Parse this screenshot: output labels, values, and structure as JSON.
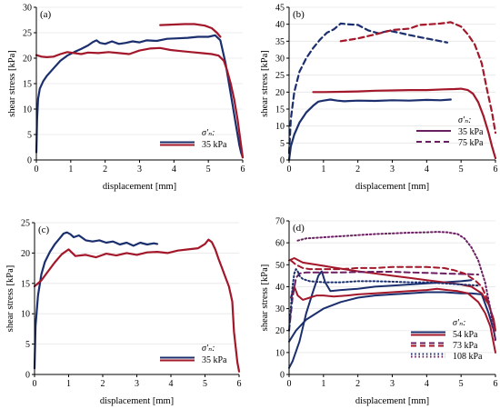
{
  "colors": {
    "blue": "#1b2f6e",
    "red": "#a3172a",
    "purple": "#6a2060",
    "axis": "#000000",
    "grid": "#e6e6e6"
  },
  "chart_data": [
    {
      "type": "line",
      "panel_label": "(a)",
      "xlabel": "displacement [mm]",
      "ylabel": "shear stress [kPa]",
      "xlim": [
        0,
        6
      ],
      "ylim": [
        0,
        30
      ],
      "xticks": [
        0,
        1,
        2,
        3,
        4,
        5,
        6
      ],
      "yticks": [
        0,
        5,
        10,
        15,
        20,
        25,
        30
      ],
      "legend_title": "σ'ₙ:",
      "legend_position": "bottom-right",
      "legend": [
        {
          "label": "35 kPa",
          "colors": [
            "blue",
            "red"
          ],
          "dash": "solid"
        }
      ],
      "series": [
        {
          "color": "blue",
          "dash": "solid",
          "width": 2.2,
          "x": [
            0,
            0.02,
            0.05,
            0.1,
            0.2,
            0.3,
            0.5,
            0.7,
            0.9,
            1.1,
            1.3,
            1.5,
            1.65,
            1.75,
            1.85,
            2.0,
            2.2,
            2.4,
            2.6,
            2.8,
            3.0,
            3.2,
            3.5,
            3.8,
            4.1,
            4.4,
            4.7,
            5.0,
            5.2,
            5.35,
            5.5,
            5.6,
            5.7,
            5.8,
            5.9,
            5.95,
            6.0
          ],
          "y": [
            1.5,
            8,
            12,
            14,
            15.5,
            16.5,
            18,
            19.5,
            20.5,
            21.2,
            21.8,
            22.5,
            23.2,
            23.5,
            23,
            22.8,
            23.3,
            22.8,
            23,
            23.3,
            23.1,
            23.5,
            23.4,
            23.8,
            23.9,
            24,
            24.2,
            24.2,
            24.5,
            23.5,
            19,
            15,
            11,
            7,
            3,
            1.5,
            0.5
          ]
        },
        {
          "color": "red",
          "dash": "solid",
          "width": 2.2,
          "x": [
            0,
            0.05,
            0.15,
            0.3,
            0.5,
            0.7,
            0.9,
            1.1,
            1.3,
            1.5,
            1.8,
            2.1,
            2.4,
            2.7,
            3.0,
            3.3,
            3.6,
            3.9,
            4.2,
            4.5,
            4.8,
            5.1,
            5.3,
            5.45,
            5.55,
            5.65,
            5.75,
            5.85,
            5.95,
            6.0
          ],
          "y": [
            20.6,
            20.5,
            20.3,
            20.2,
            20.3,
            20.8,
            21.2,
            21.0,
            20.8,
            21.1,
            21.0,
            21.2,
            21.0,
            20.8,
            21.5,
            21.9,
            22.0,
            21.6,
            21.4,
            21.2,
            21.0,
            20.8,
            20.5,
            19.5,
            17.5,
            15,
            12,
            8,
            3,
            0.5
          ]
        },
        {
          "color": "red",
          "dash": "solid",
          "width": 2.2,
          "x": [
            3.6,
            4.0,
            4.3,
            4.6,
            4.9,
            5.1,
            5.25,
            5.35
          ],
          "y": [
            26.5,
            26.6,
            26.7,
            26.7,
            26.4,
            25.9,
            25.0,
            24.2
          ]
        }
      ]
    },
    {
      "type": "line",
      "panel_label": "(b)",
      "xlabel": "displacement [mm]",
      "ylabel": "shear stress [kPa]",
      "xlim": [
        0,
        6
      ],
      "ylim": [
        0,
        45
      ],
      "xticks": [
        0,
        1,
        2,
        3,
        4,
        5,
        6
      ],
      "yticks": [
        0,
        5,
        10,
        15,
        20,
        25,
        30,
        35,
        40,
        45
      ],
      "legend_title": "σ'ₙ:",
      "legend_position": "bottom-right",
      "legend": [
        {
          "label": "35 kPa",
          "colors": [
            "purple"
          ],
          "dash": "solid"
        },
        {
          "label": "75 kPa",
          "colors": [
            "purple"
          ],
          "dash": "dashed"
        }
      ],
      "series": [
        {
          "color": "blue",
          "dash": "solid",
          "width": 2.2,
          "x": [
            0,
            0.05,
            0.15,
            0.3,
            0.5,
            0.7,
            0.85,
            1.0,
            1.2,
            1.4,
            1.6,
            2.0,
            2.5,
            3.0,
            3.5,
            4.0,
            4.4,
            4.7
          ],
          "y": [
            0,
            4,
            7.5,
            11,
            14,
            16,
            17.2,
            17.5,
            17.8,
            17.5,
            17.3,
            17.5,
            17.4,
            17.6,
            17.5,
            17.7,
            17.6,
            17.8
          ]
        },
        {
          "color": "red",
          "dash": "solid",
          "width": 2.2,
          "x": [
            0.7,
            1.0,
            1.5,
            2.0,
            2.5,
            3.0,
            3.5,
            4.0,
            4.5,
            4.8,
            5.0,
            5.2,
            5.35,
            5.5,
            5.65,
            5.8,
            5.9,
            6.0
          ],
          "y": [
            20.0,
            20.0,
            20.1,
            20.2,
            20.4,
            20.5,
            20.6,
            20.6,
            20.8,
            20.9,
            21.0,
            20.6,
            19.5,
            17.0,
            13.0,
            8.0,
            4.0,
            0.5
          ]
        },
        {
          "color": "blue",
          "dash": "dashed",
          "width": 2.2,
          "x": [
            0,
            0.05,
            0.15,
            0.3,
            0.5,
            0.7,
            0.9,
            1.1,
            1.3,
            1.5,
            1.7,
            2.0,
            2.3,
            2.6,
            2.9,
            3.2,
            3.5,
            3.8,
            4.1,
            4.4,
            4.6
          ],
          "y": [
            2,
            12,
            20,
            26,
            30,
            33,
            35.5,
            37.5,
            38.5,
            40.2,
            40.0,
            39.8,
            38.2,
            37.3,
            38.1,
            37.5,
            36.8,
            36.2,
            35.6,
            35.0,
            34.6
          ]
        },
        {
          "color": "red",
          "dash": "dashed",
          "width": 2.2,
          "x": [
            1.5,
            2.0,
            2.5,
            3.0,
            3.5,
            3.8,
            4.1,
            4.4,
            4.7,
            5.0,
            5.2,
            5.4,
            5.6,
            5.75,
            5.9,
            6.0
          ],
          "y": [
            35.0,
            35.8,
            37.0,
            38.3,
            38.7,
            39.8,
            40.0,
            40.2,
            40.6,
            39.3,
            37.0,
            34.0,
            28.5,
            21.0,
            14.0,
            8.0
          ]
        }
      ]
    },
    {
      "type": "line",
      "panel_label": "(c)",
      "xlabel": "displacement [mm]",
      "ylabel": "shear stress [kPa]",
      "xlim": [
        0,
        6
      ],
      "ylim": [
        0,
        25
      ],
      "xticks": [
        0,
        1,
        2,
        3,
        4,
        5,
        6
      ],
      "yticks": [
        0,
        5,
        10,
        15,
        20,
        25
      ],
      "legend_title": "σ'ₙ:",
      "legend_position": "bottom-right",
      "legend": [
        {
          "label": "35 kPa",
          "colors": [
            "blue",
            "red"
          ],
          "dash": "solid"
        }
      ],
      "series": [
        {
          "color": "blue",
          "dash": "solid",
          "width": 2.2,
          "x": [
            0,
            0.03,
            0.1,
            0.2,
            0.3,
            0.45,
            0.6,
            0.75,
            0.85,
            0.95,
            1.05,
            1.15,
            1.3,
            1.5,
            1.7,
            1.9,
            2.1,
            2.3,
            2.5,
            2.7,
            2.9,
            3.1,
            3.3,
            3.5,
            3.6
          ],
          "y": [
            1,
            8,
            13,
            16.5,
            18.5,
            20.2,
            21.5,
            22.5,
            23.2,
            23.4,
            23.1,
            22.6,
            22.9,
            22.1,
            21.9,
            22.1,
            21.7,
            21.9,
            21.4,
            21.7,
            21.2,
            21.7,
            21.4,
            21.6,
            21.5
          ]
        },
        {
          "color": "red",
          "dash": "solid",
          "width": 2.2,
          "x": [
            0,
            0.2,
            0.4,
            0.6,
            0.8,
            1.0,
            1.2,
            1.5,
            1.8,
            2.1,
            2.4,
            2.7,
            3.0,
            3.3,
            3.6,
            3.9,
            4.2,
            4.5,
            4.8,
            5.0,
            5.1,
            5.2,
            5.3,
            5.4,
            5.5,
            5.6,
            5.7,
            5.8,
            5.85,
            5.95,
            6.0
          ],
          "y": [
            14.5,
            15.5,
            17.0,
            18.5,
            19.8,
            20.6,
            19.5,
            19.7,
            19.3,
            19.9,
            19.6,
            20.0,
            19.7,
            20.1,
            20.2,
            20.0,
            20.4,
            20.6,
            20.8,
            21.5,
            22.2,
            21.8,
            20.6,
            19.0,
            17.5,
            16.0,
            14.5,
            12.0,
            7.0,
            2.0,
            0.5
          ]
        }
      ]
    },
    {
      "type": "line",
      "panel_label": "(d)",
      "xlabel": "displacement [mm]",
      "ylabel": "shear stress [kPa]",
      "xlim": [
        0,
        6
      ],
      "ylim": [
        0,
        70
      ],
      "xticks": [
        0,
        1,
        2,
        3,
        4,
        5,
        6
      ],
      "yticks": [
        0,
        10,
        20,
        30,
        40,
        50,
        60,
        70
      ],
      "legend_title": "σ'ₙ:",
      "legend_position": "bottom-right",
      "legend": [
        {
          "label": "54 kPa",
          "colors": [
            "blue",
            "red"
          ],
          "dash": "solid"
        },
        {
          "label": "73 kPa",
          "colors": [
            "purple",
            "red"
          ],
          "dash": "dashed"
        },
        {
          "label": "108 kPa",
          "colors": [
            "blue",
            "purple"
          ],
          "dash": "dotted"
        }
      ],
      "series": [
        {
          "color": "blue",
          "dash": "solid",
          "width": 2.0,
          "x": [
            0,
            0.2,
            0.5,
            1.0,
            1.5,
            2.0,
            2.5,
            3.0,
            3.5,
            4.0,
            4.5,
            5.0,
            5.3,
            5.6,
            5.8,
            5.95,
            6.0
          ],
          "y": [
            15,
            20,
            25,
            30,
            33,
            35,
            36,
            36.5,
            37,
            37.5,
            37.5,
            37,
            37,
            36.5,
            28,
            20,
            16
          ]
        },
        {
          "color": "blue",
          "dash": "solid",
          "width": 2.0,
          "x": [
            0,
            0.1,
            0.3,
            0.5,
            0.7,
            0.85,
            0.95,
            1.05,
            1.2,
            1.5,
            2.0,
            2.5,
            3.0,
            3.5,
            4.0,
            4.5,
            5.0,
            5.3
          ],
          "y": [
            3,
            6,
            15,
            28,
            38,
            45,
            47,
            42,
            38,
            38.5,
            39,
            40,
            40.5,
            41,
            41.5,
            42,
            42.5,
            43
          ]
        },
        {
          "color": "red",
          "dash": "solid",
          "width": 2.0,
          "x": [
            0,
            0.15,
            0.4,
            0.8,
            1.2,
            1.6,
            2.0,
            2.5,
            3.0,
            3.5,
            4.0,
            4.5,
            5.0,
            5.3,
            5.6,
            5.8,
            5.95,
            6.0
          ],
          "y": [
            52,
            53,
            51,
            50,
            49,
            48,
            47,
            46,
            45,
            44,
            43,
            42,
            41,
            40,
            37,
            32,
            25,
            20
          ]
        },
        {
          "color": "red",
          "dash": "solid",
          "width": 2.0,
          "x": [
            0.05,
            0.15,
            0.25,
            0.4,
            0.6,
            0.8,
            1.0,
            1.3,
            1.7,
            2.0,
            2.5,
            3.0,
            3.5,
            4.0,
            4.3,
            4.6,
            4.9,
            5.2,
            5.5,
            5.7,
            5.85,
            6.0
          ],
          "y": [
            35,
            40,
            36,
            34,
            35,
            36,
            36,
            35.5,
            36,
            36.5,
            37,
            37.5,
            38,
            38.5,
            39,
            38.5,
            38,
            37,
            33,
            28,
            22,
            10
          ]
        },
        {
          "color": "purple",
          "dash": "dashed",
          "width": 2.0,
          "x": [
            0,
            0.1,
            0.2,
            0.3,
            0.5,
            1.0,
            1.5,
            2.0,
            2.5,
            3.0,
            3.5,
            4.0,
            4.5,
            5.0,
            5.5
          ],
          "y": [
            20,
            35,
            44,
            46,
            46.5,
            46.5,
            46.5,
            46.7,
            46.8,
            46.8,
            46.5,
            46.3,
            46,
            45.8,
            45.5
          ]
        },
        {
          "color": "red",
          "dash": "dashed",
          "width": 2.0,
          "x": [
            0.05,
            0.2,
            0.4,
            0.6,
            1.0,
            1.5,
            2.0,
            2.5,
            3.0,
            3.5,
            4.0,
            4.5,
            4.8,
            5.1,
            5.4,
            5.6,
            5.8,
            5.95,
            6.0
          ],
          "y": [
            52,
            50,
            48.5,
            48,
            48,
            48,
            48.5,
            48.5,
            49,
            49,
            49,
            48.5,
            47.5,
            46,
            43,
            40,
            33,
            24,
            20
          ]
        },
        {
          "color": "blue",
          "dash": "dotted",
          "width": 2.0,
          "x": [
            0,
            0.05,
            0.1,
            0.15,
            0.2,
            0.25,
            0.3,
            0.4,
            0.6,
            1.0,
            1.5,
            2.0,
            2.5,
            3.0,
            3.5,
            4.0,
            4.5,
            5.0,
            5.5
          ],
          "y": [
            20,
            30,
            40,
            46,
            48,
            47,
            45,
            43.5,
            42.5,
            42,
            42,
            42.5,
            42.5,
            42.3,
            42,
            42,
            41.5,
            41,
            40.5
          ]
        },
        {
          "color": "purple",
          "dash": "dotted",
          "width": 2.0,
          "x": [
            0.25,
            0.5,
            1.0,
            1.5,
            2.0,
            2.5,
            3.0,
            3.5,
            4.0,
            4.3,
            4.6,
            4.9,
            5.1,
            5.3,
            5.5,
            5.7,
            5.85,
            5.95,
            6.0
          ],
          "y": [
            61,
            62,
            62.5,
            63,
            63.5,
            64,
            64.3,
            64.6,
            64.8,
            65,
            64.8,
            64,
            62,
            58,
            52,
            42,
            30,
            20,
            15
          ]
        }
      ]
    }
  ]
}
